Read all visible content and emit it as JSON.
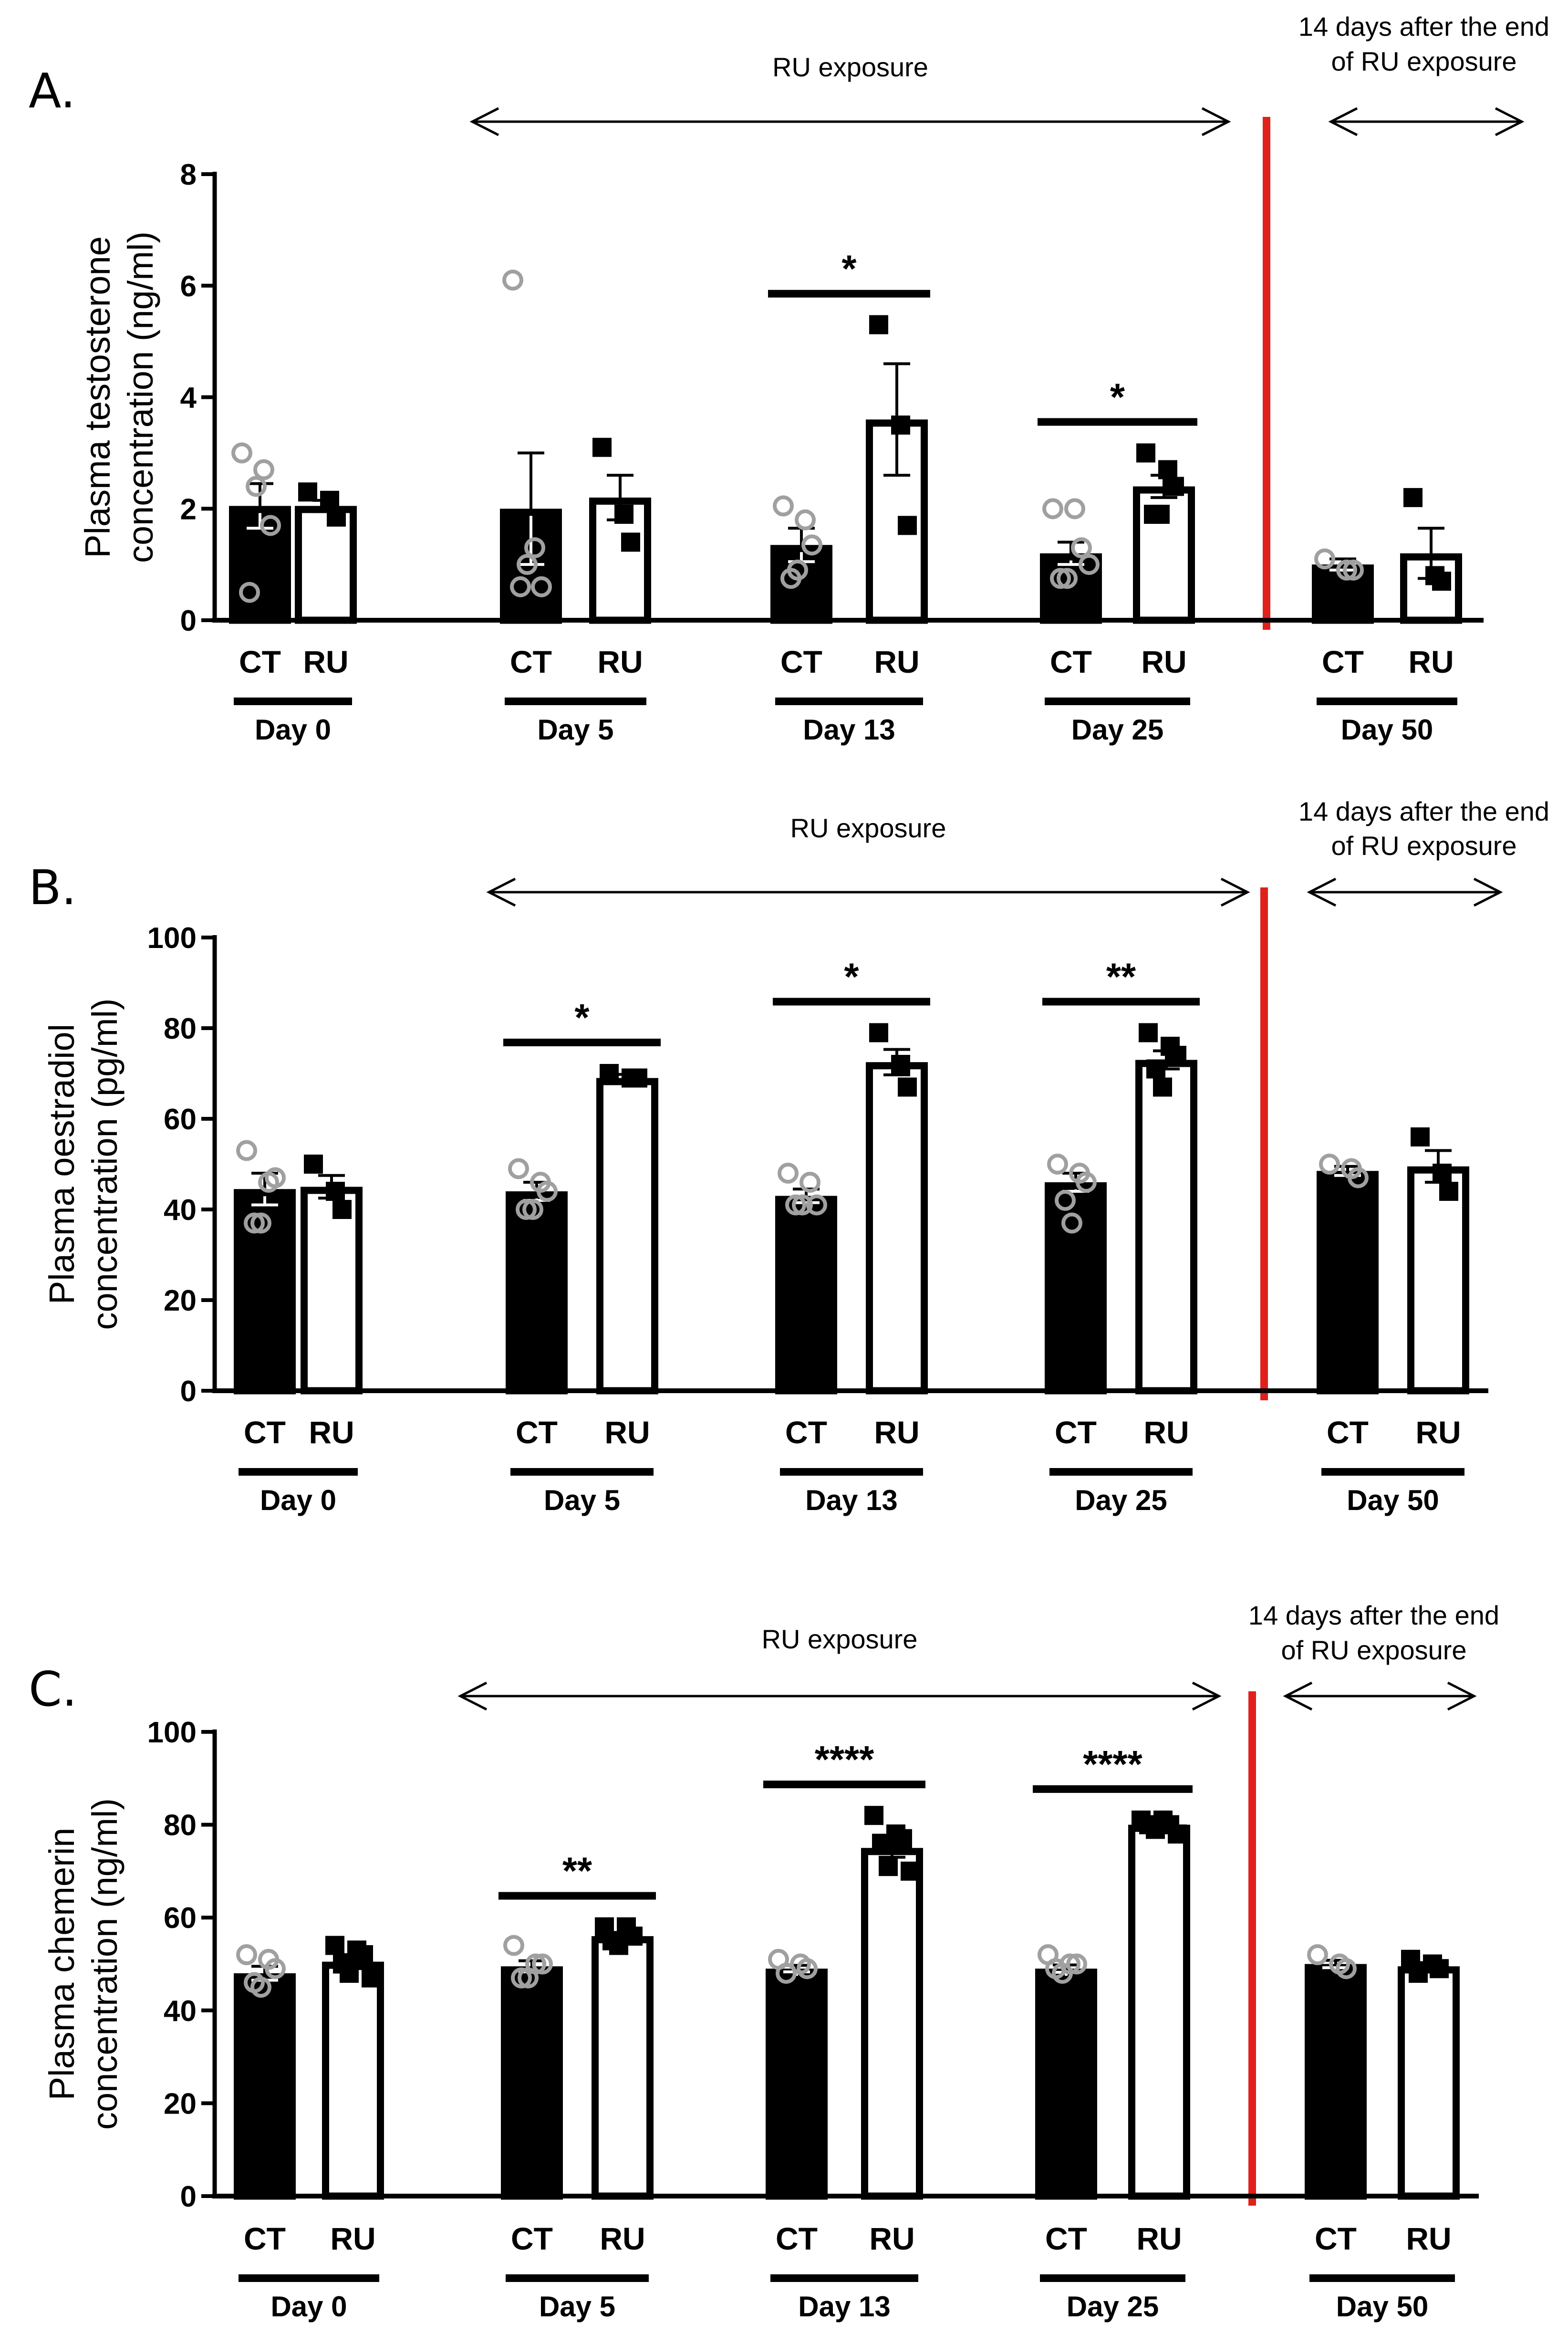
{
  "chart_data": [
    {
      "type": "bar",
      "panel_label": "A.",
      "ylabel": [
        "Plasma testosterone",
        "concentration (ng/ml)"
      ],
      "ylim": [
        0,
        8
      ],
      "yticks": [
        0,
        2,
        4,
        6,
        8
      ],
      "exposure_label": "RU exposure",
      "after_label": [
        "14 days after the end",
        "of RU exposure"
      ],
      "groups": [
        {
          "day": "Day 0",
          "bars": [
            {
              "label": "CT",
              "fill": "#000000",
              "mean": 2.05,
              "sem": 0.4,
              "points": [
                3.0,
                2.7,
                1.7,
                0.5,
                2.4
              ]
            },
            {
              "label": "RU",
              "fill": "#ffffff",
              "mean": 2.05,
              "sem": 0.1,
              "points": [
                2.3,
                2.15,
                1.85
              ]
            }
          ]
        },
        {
          "day": "Day 5",
          "bars": [
            {
              "label": "CT",
              "fill": "#000000",
              "mean": 2.0,
              "sem": 1.0,
              "points": [
                6.1,
                1.3,
                0.6,
                0.6,
                1.0
              ]
            },
            {
              "label": "RU",
              "fill": "#ffffff",
              "mean": 2.2,
              "sem": 0.4,
              "points": [
                3.1,
                1.9,
                1.4
              ]
            }
          ]
        },
        {
          "day": "Day 13",
          "bars": [
            {
              "label": "CT",
              "fill": "#000000",
              "mean": 1.35,
              "sem": 0.3,
              "points": [
                2.05,
                1.8,
                1.35,
                0.75,
                0.9
              ]
            },
            {
              "label": "RU",
              "fill": "#ffffff",
              "mean": 3.6,
              "sem": 1.0,
              "points": [
                5.3,
                3.5,
                1.7
              ]
            }
          ],
          "significance": "*"
        },
        {
          "day": "Day 25",
          "bars": [
            {
              "label": "CT",
              "fill": "#000000",
              "mean": 1.2,
              "sem": 0.2,
              "points": [
                2.0,
                2.0,
                1.3,
                0.75,
                0.75,
                1.0
              ]
            },
            {
              "label": "RU",
              "fill": "#ffffff",
              "mean": 2.4,
              "sem": 0.2,
              "points": [
                3.0,
                2.7,
                2.4,
                1.9,
                1.9
              ]
            }
          ],
          "significance": "*"
        },
        {
          "day": "Day 50",
          "bars": [
            {
              "label": "CT",
              "fill": "#000000",
              "mean": 1.0,
              "sem": 0.1,
              "points": [
                1.1,
                0.9,
                0.9
              ]
            },
            {
              "label": "RU",
              "fill": "#ffffff",
              "mean": 1.2,
              "sem": 0.45,
              "points": [
                2.2,
                0.8,
                0.7
              ]
            }
          ]
        }
      ]
    },
    {
      "type": "bar",
      "panel_label": "B.",
      "ylabel": [
        "Plasma oestradiol",
        "concentration (pg/ml)"
      ],
      "ylim": [
        0,
        100
      ],
      "yticks": [
        0,
        20,
        40,
        60,
        80,
        100
      ],
      "exposure_label": "RU exposure",
      "after_label": [
        "14 days after the end",
        "of RU exposure"
      ],
      "groups": [
        {
          "day": "Day 0",
          "bars": [
            {
              "label": "CT",
              "fill": "#000000",
              "mean": 44.5,
              "sem": 3.5,
              "points": [
                53,
                46,
                47,
                37,
                37
              ]
            },
            {
              "label": "RU",
              "fill": "#ffffff",
              "mean": 45,
              "sem": 2.5,
              "points": [
                50,
                44,
                40
              ]
            }
          ]
        },
        {
          "day": "Day 5",
          "bars": [
            {
              "label": "CT",
              "fill": "#000000",
              "mean": 44,
              "sem": 2,
              "points": [
                49,
                46,
                44,
                40,
                40
              ]
            },
            {
              "label": "RU",
              "fill": "#ffffff",
              "mean": 69,
              "sem": 0.8,
              "points": [
                70,
                69,
                69
              ]
            }
          ],
          "significance": "*"
        },
        {
          "day": "Day 13",
          "bars": [
            {
              "label": "CT",
              "fill": "#000000",
              "mean": 43,
              "sem": 1.5,
              "points": [
                48,
                46,
                41,
                41,
                41
              ]
            },
            {
              "label": "RU",
              "fill": "#ffffff",
              "mean": 72.5,
              "sem": 2.8,
              "points": [
                79,
                72,
                67
              ]
            }
          ],
          "significance": "*"
        },
        {
          "day": "Day 25",
          "bars": [
            {
              "label": "CT",
              "fill": "#000000",
              "mean": 46,
              "sem": 2,
              "points": [
                50,
                48,
                46,
                42,
                37
              ]
            },
            {
              "label": "RU",
              "fill": "#ffffff",
              "mean": 73,
              "sem": 2,
              "points": [
                79,
                76,
                74,
                71,
                67
              ]
            }
          ],
          "significance": "**"
        },
        {
          "day": "Day 50",
          "bars": [
            {
              "label": "CT",
              "fill": "#000000",
              "mean": 48.5,
              "sem": 1,
              "points": [
                50,
                49,
                47
              ]
            },
            {
              "label": "RU",
              "fill": "#ffffff",
              "mean": 49.5,
              "sem": 3.5,
              "points": [
                56,
                48,
                44
              ]
            }
          ]
        }
      ]
    },
    {
      "type": "bar",
      "panel_label": "C.",
      "ylabel": [
        "Plasma chemerin",
        "concentration (ng/ml)"
      ],
      "ylim": [
        0,
        100
      ],
      "yticks": [
        0,
        20,
        40,
        60,
        80,
        100
      ],
      "exposure_label": "RU exposure",
      "after_label": [
        "14 days after the end",
        "of RU exposure"
      ],
      "groups": [
        {
          "day": "Day 0",
          "bars": [
            {
              "label": "CT",
              "fill": "#000000",
              "mean": 48,
              "sem": 1.5,
              "points": [
                52,
                51,
                49,
                46,
                45
              ]
            },
            {
              "label": "RU",
              "fill": "#ffffff",
              "mean": 50.5,
              "sem": 1.5,
              "points": [
                54,
                53,
                52,
                50,
                48,
                47
              ]
            }
          ]
        },
        {
          "day": "Day 5",
          "bars": [
            {
              "label": "CT",
              "fill": "#000000",
              "mean": 49.5,
              "sem": 1.2,
              "points": [
                54,
                50,
                50,
                47,
                47
              ]
            },
            {
              "label": "RU",
              "fill": "#ffffff",
              "mean": 56,
              "sem": 0.8,
              "points": [
                58,
                58,
                56,
                55,
                54
              ]
            }
          ],
          "significance": "**"
        },
        {
          "day": "Day 13",
          "bars": [
            {
              "label": "CT",
              "fill": "#000000",
              "mean": 49,
              "sem": 0.7,
              "points": [
                51,
                50,
                49,
                48
              ]
            },
            {
              "label": "RU",
              "fill": "#ffffff",
              "mean": 75,
              "sem": 2,
              "points": [
                82,
                78,
                77,
                76,
                71,
                70
              ]
            }
          ],
          "significance": "****"
        },
        {
          "day": "Day 25",
          "bars": [
            {
              "label": "CT",
              "fill": "#000000",
              "mean": 49,
              "sem": 0.8,
              "points": [
                52,
                50,
                50,
                49,
                48
              ]
            },
            {
              "label": "RU",
              "fill": "#ffffff",
              "mean": 80,
              "sem": 0.7,
              "points": [
                81,
                81,
                80,
                80,
                79,
                78
              ]
            }
          ],
          "significance": "****"
        },
        {
          "day": "Day 50",
          "bars": [
            {
              "label": "CT",
              "fill": "#000000",
              "mean": 50,
              "sem": 0.8,
              "points": [
                52,
                50,
                49
              ]
            },
            {
              "label": "RU",
              "fill": "#ffffff",
              "mean": 49.5,
              "sem": 0.8,
              "points": [
                51,
                50,
                49,
                48
              ]
            }
          ]
        }
      ]
    }
  ],
  "colors": {
    "ct_bar": "#000000",
    "ru_bar": "#ffffff",
    "ct_point": "#a0a0a0",
    "ru_point": "#000000",
    "divider": "#e0201b"
  }
}
